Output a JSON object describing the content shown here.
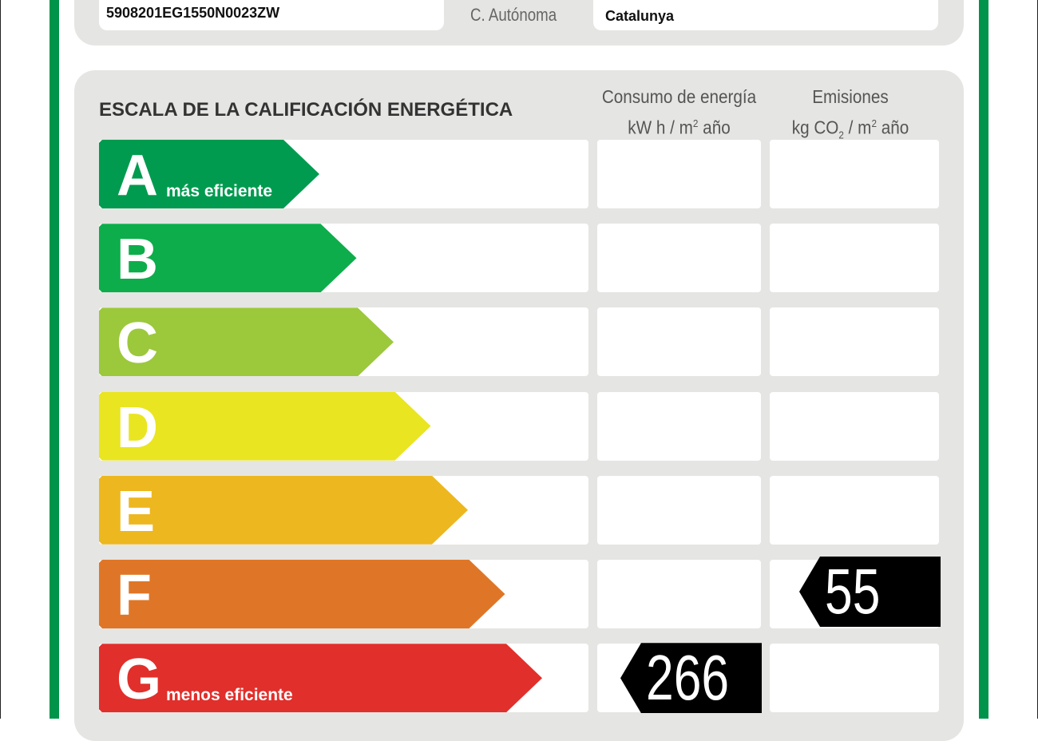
{
  "header": {
    "cadastral_ref": "5908201EG1550N0023ZW",
    "region_label": "C. Autónoma",
    "region_value": "Catalunya"
  },
  "scale": {
    "title": "ESCALA DE LA CALIFICACIÓN ENERGÉTICA",
    "col_energy": {
      "line1": "Consumo de energía",
      "line2a": "kW h  / m",
      "sup": "2",
      "line2b": " año"
    },
    "col_emissions": {
      "line1": "Emisiones",
      "line2a": "kg CO",
      "sub": "2",
      "line2b": "  / m",
      "sup": "2",
      "line2c": " año"
    },
    "classes": [
      {
        "letter": "A",
        "label": "más eficiente",
        "color": "#009b4f"
      },
      {
        "letter": "B",
        "label": "",
        "color": "#0dad4b"
      },
      {
        "letter": "C",
        "label": "",
        "color": "#9cc83c"
      },
      {
        "letter": "D",
        "label": "",
        "color": "#e9e520"
      },
      {
        "letter": "E",
        "label": "",
        "color": "#edb71f"
      },
      {
        "letter": "F",
        "label": "",
        "color": "#df7627"
      },
      {
        "letter": "G",
        "label": "menos eficiente",
        "color": "#e12f2b"
      }
    ],
    "energy_rating": {
      "class": "G",
      "value": "266"
    },
    "emissions_rating": {
      "class": "F",
      "value": "55"
    }
  }
}
